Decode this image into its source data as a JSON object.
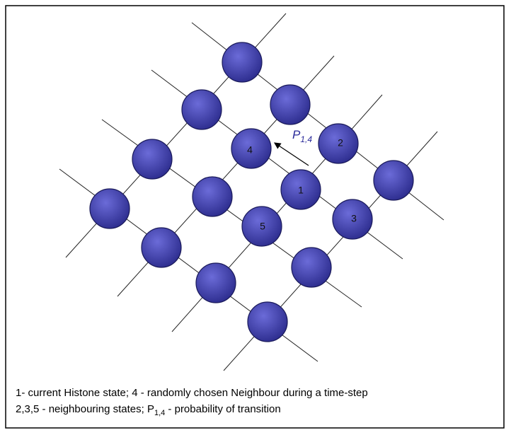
{
  "nodes": [
    {
      "label": "1"
    },
    {
      "label": "2"
    },
    {
      "label": "3"
    },
    {
      "label": "4"
    },
    {
      "label": "5"
    }
  ],
  "annotation": {
    "text": "P",
    "subscript": "1,4"
  },
  "caption": {
    "line1": "1- current Histone state; 4 - randomly chosen Neighbour during a time-step",
    "line2": {
      "before": "2,3,5 - neighbouring states; P",
      "subscript": "1,4",
      "after": " - probability of transition"
    }
  }
}
